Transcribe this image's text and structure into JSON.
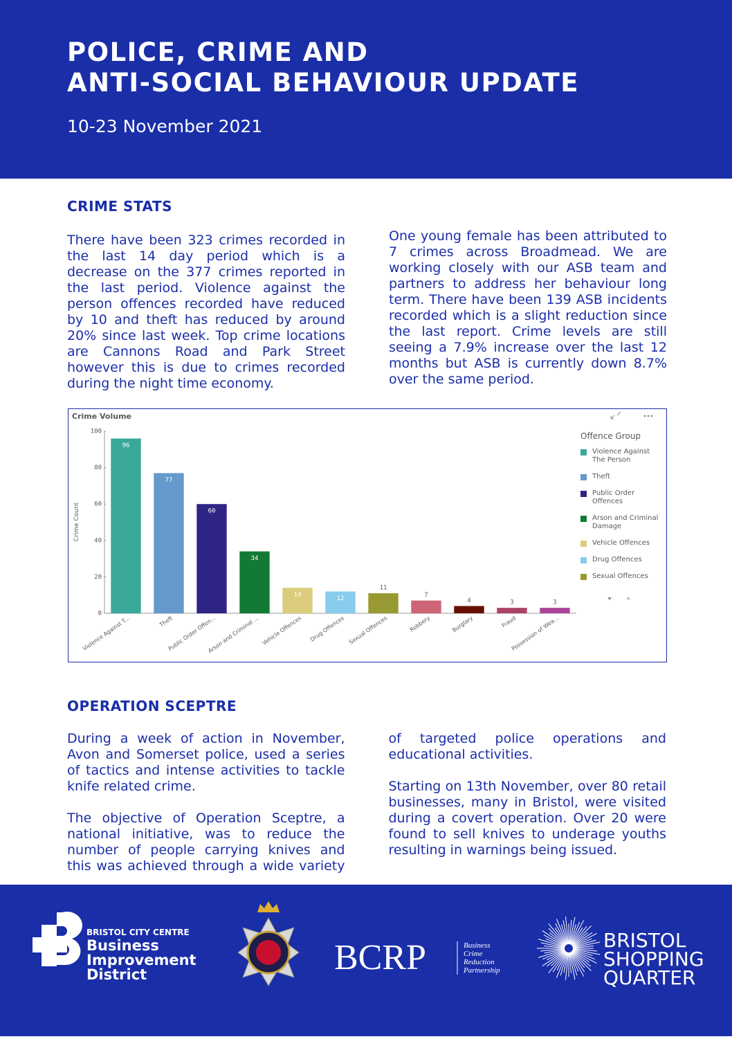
{
  "header": {
    "title_lines": [
      "POLICE, CRIME AND",
      "ANTI-SOCIAL BEHAVIOUR UPDATE"
    ],
    "date": "10-23 November 2021"
  },
  "crime_stats": {
    "heading": "CRIME STATS",
    "paragraphs": [
      "There have been 323 crimes recorded in the last 14 day period which is a decrease on the 377 crimes reported in the last period. Violence against the person offences recorded have reduced by 10 and theft has reduced by around 20% since last week. Top crime locations are Cannons Road and Park Street however this is due to crimes recorded during the night time economy.",
      "One young female has been attributed to 7 crimes across Broadmead. We are working closely with our ASB team and partners to address her behaviour long term. There have been 139 ASB incidents recorded which is a slight reduction since the last report. Crime levels are still seeing a 7.9% increase over the last 12 months but ASB is currently down 8.7% over the same period."
    ]
  },
  "chart_data": {
    "type": "bar",
    "title": "Crime Volume",
    "y_label": "Crime Count",
    "categories": [
      "Violence Against T...",
      "Theft",
      "Public Order Offen...",
      "Arson and Criminal ...",
      "Vehicle Offences",
      "Drug Offences",
      "Sexual Offences",
      "Robbery",
      "Burglary",
      "Fraud",
      "Possession of Wea..."
    ],
    "values": [
      96,
      77,
      60,
      34,
      14,
      12,
      11,
      7,
      4,
      3,
      3
    ],
    "colors": [
      "#3aa99a",
      "#6699cc",
      "#2e2585",
      "#137a35",
      "#dccd7d",
      "#88ccee",
      "#999933",
      "#cc6677",
      "#661100",
      "#aa4466",
      "#aa4499"
    ],
    "ylim": [
      0,
      100
    ],
    "yticks": [
      0,
      20,
      40,
      60,
      80,
      100
    ],
    "legend": {
      "title": "Offence Group",
      "items": [
        "Violence Against The Person",
        "Theft",
        "Public Order Offences",
        "Arson and Criminal Damage",
        "Vehicle Offences",
        "Drug Offences",
        "Sexual Offences"
      ]
    }
  },
  "operation_sceptre": {
    "heading": "OPERATION SCEPTRE",
    "paragraphs": [
      "During a week of action in November, Avon and Somerset police, used a series of tactics and intense activities to tackle knife related crime.",
      "The objective of Operation Sceptre, a national initiative, was to reduce the number of people carrying knives and this was achieved through a wide variety of targeted police operations and educational activities.",
      "Starting on 13th November, over 80 retail businesses, many in Bristol, were visited during a covert operation. Over 20 were found to sell knives to underage youths resulting in warnings being issued."
    ]
  },
  "footer": {
    "bid": {
      "kicker": "BRISTOL CITY CENTRE",
      "lines": [
        "Business",
        "Improvement",
        "District"
      ]
    },
    "bcrp": {
      "name": "BCRP",
      "lines": [
        "Business",
        "Crime",
        "Reduction",
        "Partnership"
      ]
    },
    "bsq": {
      "lines": [
        "BRISTOL",
        "SHOPPING",
        "QUARTER"
      ]
    }
  }
}
